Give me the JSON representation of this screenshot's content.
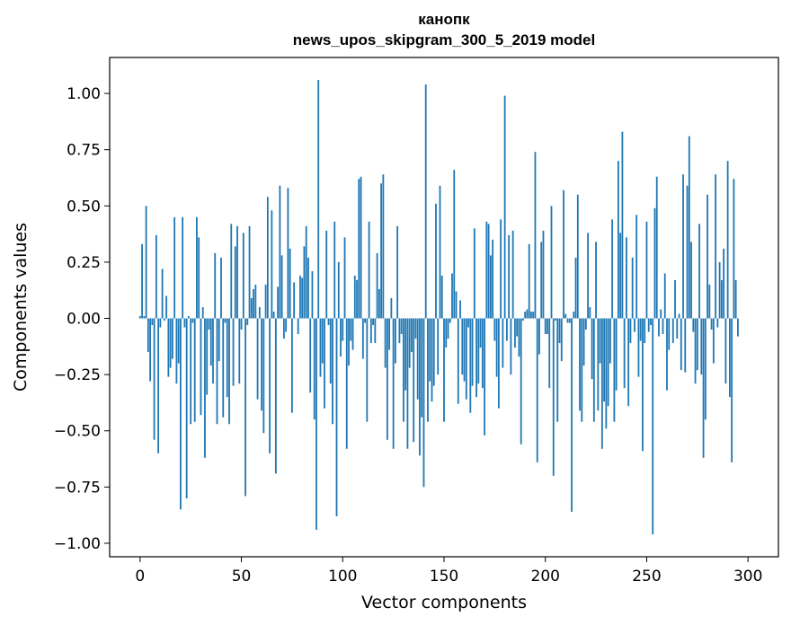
{
  "chart_data": {
    "type": "bar",
    "title_lines": [
      "канопк",
      "news_upos_skipgram_300_5_2019 model"
    ],
    "xlabel": "Vector components",
    "ylabel": "Components values",
    "xlim": [
      -15,
      315
    ],
    "ylim": [
      -1.06,
      1.16
    ],
    "xticks": [
      0,
      50,
      100,
      150,
      200,
      250,
      300
    ],
    "xtick_labels": [
      "0",
      "50",
      "100",
      "150",
      "200",
      "250",
      "300"
    ],
    "yticks": [
      -1.0,
      -0.75,
      -0.5,
      -0.25,
      0.0,
      0.25,
      0.5,
      0.75,
      1.0
    ],
    "ytick_labels": [
      "−1.00",
      "−0.75",
      "−0.50",
      "−0.25",
      "0.00",
      "0.25",
      "0.50",
      "0.75",
      "1.00"
    ],
    "bar_color": "#1f77b4",
    "values": [
      0.01,
      0.33,
      0.01,
      0.5,
      -0.15,
      -0.28,
      -0.03,
      -0.54,
      0.37,
      -0.6,
      -0.04,
      0.22,
      -0.01,
      0.1,
      -0.26,
      -0.22,
      -0.18,
      0.45,
      -0.29,
      -0.2,
      -0.85,
      0.45,
      -0.04,
      -0.8,
      0.01,
      -0.47,
      -0.02,
      -0.46,
      0.45,
      0.36,
      -0.43,
      0.05,
      -0.62,
      -0.34,
      -0.05,
      -0.21,
      -0.29,
      0.29,
      -0.47,
      -0.19,
      0.27,
      -0.44,
      -0.02,
      -0.35,
      -0.47,
      0.42,
      -0.3,
      0.32,
      0.41,
      -0.29,
      -0.05,
      0.38,
      -0.79,
      -0.03,
      0.41,
      0.09,
      0.13,
      0.15,
      -0.36,
      0.05,
      -0.41,
      -0.51,
      0.15,
      0.54,
      -0.6,
      0.48,
      0.03,
      -0.69,
      0.14,
      0.59,
      0.28,
      -0.09,
      -0.06,
      0.58,
      0.31,
      -0.42,
      0.16,
      0.0,
      -0.07,
      0.19,
      0.18,
      0.32,
      0.41,
      0.27,
      -0.33,
      0.21,
      -0.45,
      -0.94,
      1.06,
      -0.26,
      -0.2,
      -0.4,
      0.39,
      -0.03,
      -0.29,
      -0.47,
      0.43,
      -0.88,
      0.25,
      -0.17,
      -0.1,
      0.36,
      -0.58,
      -0.21,
      -0.1,
      -0.14,
      0.19,
      0.17,
      0.62,
      0.63,
      -0.18,
      -0.02,
      -0.46,
      0.43,
      -0.11,
      -0.03,
      -0.11,
      0.29,
      0.13,
      0.6,
      0.64,
      -0.22,
      -0.54,
      -0.14,
      0.09,
      -0.58,
      -0.2,
      0.41,
      -0.11,
      -0.07,
      -0.46,
      -0.32,
      -0.58,
      -0.22,
      -0.15,
      -0.55,
      -0.09,
      -0.36,
      -0.61,
      -0.44,
      -0.75,
      1.04,
      -0.46,
      -0.28,
      -0.37,
      -0.3,
      0.51,
      -0.25,
      0.59,
      0.19,
      -0.46,
      -0.13,
      -0.09,
      -0.02,
      0.2,
      0.66,
      0.12,
      -0.38,
      0.08,
      -0.25,
      -0.28,
      -0.36,
      -0.04,
      -0.42,
      -0.3,
      0.4,
      -0.35,
      -0.29,
      -0.13,
      -0.31,
      -0.52,
      0.43,
      0.42,
      0.28,
      0.35,
      -0.1,
      -0.26,
      -0.4,
      0.44,
      -0.22,
      0.99,
      -0.1,
      0.37,
      -0.25,
      0.39,
      -0.13,
      -0.08,
      -0.17,
      -0.56,
      -0.01,
      0.03,
      0.04,
      0.33,
      0.03,
      0.03,
      0.74,
      -0.64,
      -0.16,
      0.34,
      0.39,
      -0.07,
      -0.07,
      -0.31,
      0.5,
      -0.7,
      -0.01,
      -0.46,
      -0.11,
      -0.19,
      0.57,
      0.02,
      -0.02,
      -0.02,
      -0.86,
      0.03,
      0.27,
      0.55,
      -0.41,
      -0.46,
      -0.21,
      -0.05,
      0.38,
      0.05,
      -0.27,
      -0.46,
      0.34,
      -0.41,
      -0.2,
      -0.58,
      -0.37,
      -0.49,
      -0.39,
      -0.2,
      0.44,
      -0.46,
      -0.32,
      0.7,
      0.38,
      0.83,
      -0.31,
      0.36,
      -0.39,
      -0.11,
      0.27,
      -0.06,
      0.46,
      -0.26,
      -0.1,
      -0.59,
      -0.11,
      0.43,
      -0.06,
      -0.03,
      -0.96,
      0.49,
      0.63,
      -0.08,
      0.04,
      -0.07,
      0.2,
      -0.32,
      -0.14,
      0.0,
      -0.11,
      0.17,
      -0.09,
      0.02,
      -0.23,
      0.64,
      -0.24,
      0.59,
      0.81,
      0.34,
      -0.06,
      -0.29,
      -0.23,
      0.42,
      -0.25,
      -0.62,
      -0.45,
      0.55,
      0.15,
      -0.05,
      -0.2,
      0.64,
      -0.04,
      0.25,
      0.17,
      0.31,
      -0.29,
      0.7,
      -0.35,
      -0.64,
      0.62,
      0.17,
      -0.08
    ]
  }
}
